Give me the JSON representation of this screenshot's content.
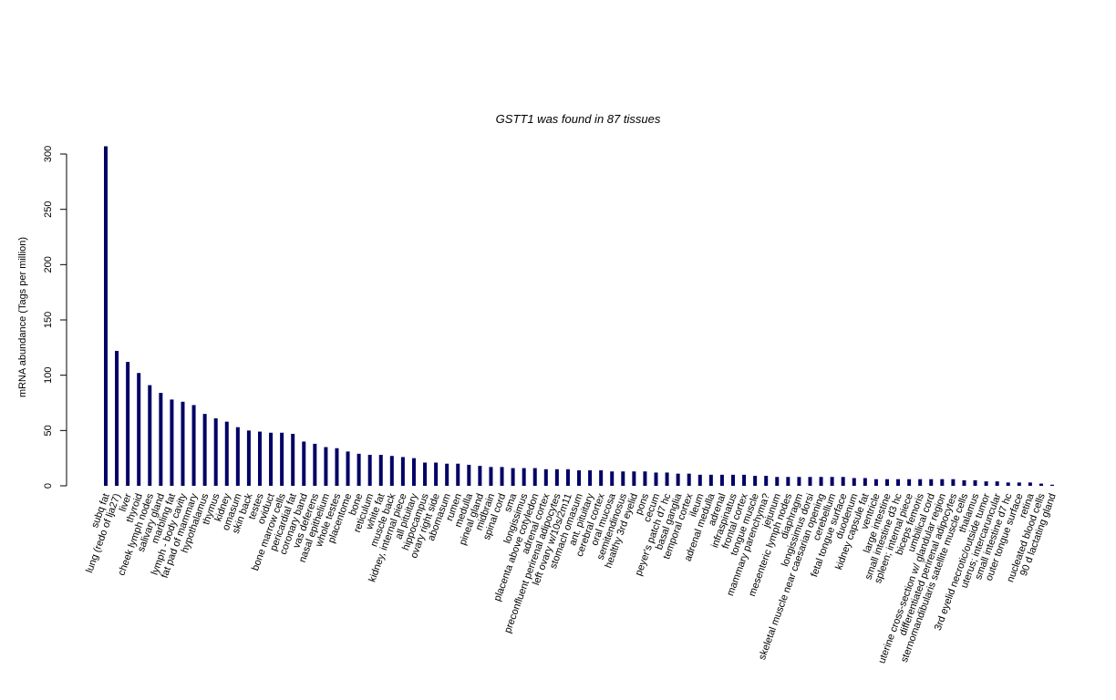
{
  "chart_data": {
    "type": "bar",
    "title": "GSTT1  was found in  87  tissues",
    "xlabel": "",
    "ylabel": "mRNA abundance (Tags per million)",
    "ylim": [
      0,
      310
    ],
    "yticks": [
      0,
      50,
      100,
      150,
      200,
      250,
      300
    ],
    "grid": false,
    "bar_color": "#000066",
    "categories": [
      "subq fat",
      "lung (redo of lja27)",
      "liver",
      "thyroid",
      "cheek lymph nodes",
      "salivary gland",
      "marbling fat",
      "lymph - body cavity",
      "fat pad of mammary",
      "hypothalamus",
      "thymus",
      "kidney",
      "omasum",
      "skin back",
      "testes",
      "oviduct",
      "bone marrow cells",
      "pericardial fat",
      "coronary band",
      "vas deferens",
      "nasal epithelium",
      "whole testes",
      "placentome",
      "bone",
      "reticulum",
      "white fat",
      "muscle back",
      "kidney, internal piece",
      "all pituitary",
      "hippocampus",
      "ovary right side",
      "abomasum",
      "rumen",
      "medulla",
      "pineal gland",
      "midbrain",
      "spinal cord",
      "sma",
      "longissimus",
      "placenta above cotyledon",
      "adrenal cortex",
      "preconfluent perirenal adipocytes",
      "left ovary w/10s/2m11",
      "stomach omasum",
      "ant. pituitary",
      "cerebral cortex",
      "oral mucosa",
      "semitendinosus",
      "healthy 3rd eyelid",
      "pons",
      "cecum",
      "peyer's patch d7 hc",
      "basal ganglia",
      "temporal cortex",
      "ileum",
      "adrenal medulla",
      "adrenal",
      "infraspinatus",
      "frontal cortex",
      "tongue muscle",
      "mammary parenchyma?",
      "jejunum",
      "mesenteric lymph nodes",
      "diaphragm",
      "longissimus dorsi",
      "skeletal muscle near caesarian opening",
      "cerebellum",
      "fetal tongue surface",
      "duodenum",
      "kidney capsule fat",
      "ventricle",
      "large intestine",
      "small intestine d3 hc",
      "spleen; internal piece",
      "biceps femoris",
      "umbilical cord",
      "uterine cross-section w/ glandular region",
      "differentiated perirenal adipocytes",
      "sternomandibularis satellite muscle cells",
      "thalamus",
      "3rd eyelid necrotic/outside tumor",
      "uterus; intercaruncular",
      "small intestine d7 hc",
      "outer tongue surface",
      "retina",
      "nucleated blood cells",
      "90 d lactating gland"
    ],
    "values": [
      307,
      122,
      112,
      102,
      91,
      84,
      78,
      76,
      73,
      65,
      61,
      58,
      53,
      50,
      49,
      48,
      48,
      47,
      40,
      38,
      35,
      34,
      31,
      29,
      28,
      28,
      27,
      26,
      25,
      21,
      21,
      20,
      20,
      19,
      18,
      17,
      17,
      16,
      16,
      16,
      15,
      15,
      15,
      14,
      14,
      14,
      13,
      13,
      13,
      13,
      12,
      12,
      11,
      11,
      10,
      10,
      10,
      10,
      10,
      9,
      9,
      8,
      8,
      8,
      8,
      8,
      8,
      8,
      7,
      7,
      6,
      6,
      6,
      6,
      6,
      6,
      6,
      6,
      5,
      5,
      4,
      4,
      3,
      3,
      3,
      2,
      1
    ]
  }
}
